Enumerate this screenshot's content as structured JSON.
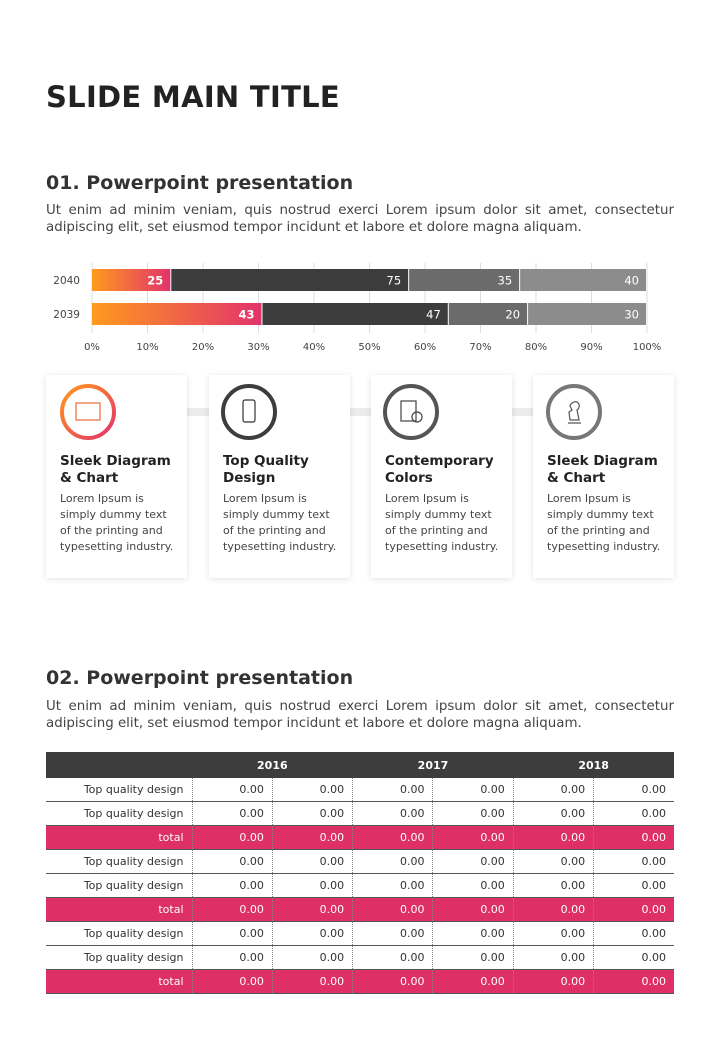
{
  "title": "SLIDE MAIN TITLE",
  "section1": {
    "heading": "01. Powerpoint presentation",
    "text": "Ut enim ad minim veniam, quis nostrud exerci  Lorem ipsum dolor sit amet, consectetur adipiscing elit, set eiusmod tempor incidunt et labore et dolore magna aliquam."
  },
  "chart_data": {
    "type": "stacked-bar-100",
    "categories": [
      "2040",
      "2039"
    ],
    "series": [
      {
        "color": [
          "#ff9a1e",
          "#e2336b"
        ],
        "values": [
          25,
          43
        ]
      },
      {
        "color": "#3d3d3d",
        "values": [
          75,
          47
        ]
      },
      {
        "color": "#6b6b6b",
        "values": [
          35,
          20
        ]
      },
      {
        "color": "#8c8c8c",
        "values": [
          40,
          30
        ]
      }
    ],
    "xlim": [
      0,
      100
    ],
    "xticks": [
      {
        "value": 0,
        "label": "0%"
      },
      {
        "value": 10,
        "label": "10%"
      },
      {
        "value": 20,
        "label": "20%"
      },
      {
        "value": 30,
        "label": "30%"
      },
      {
        "value": 40,
        "label": "40%"
      },
      {
        "value": 50,
        "label": "50%"
      },
      {
        "value": 60,
        "label": "60%"
      },
      {
        "value": 70,
        "label": "70%"
      },
      {
        "value": 80,
        "label": "80%"
      },
      {
        "value": 90,
        "label": "90%"
      },
      {
        "value": 100,
        "label": "100%"
      }
    ],
    "grid": true
  },
  "cards": [
    {
      "title": "Sleek Diagram & Chart",
      "text": "Lorem Ipsum is simply dummy text of the printing and typesetting industry."
    },
    {
      "title": "Top Quality Design",
      "text": "Lorem Ipsum is simply dummy text of the printing and typesetting industry."
    },
    {
      "title": "Contemporary Colors",
      "text": "Lorem Ipsum is simply dummy text of the printing and typesetting industry."
    },
    {
      "title": "Sleek Diagram & Chart",
      "text": "Lorem Ipsum is simply dummy text of the printing and typesetting industry."
    }
  ],
  "section2": {
    "heading": "02. Powerpoint presentation",
    "text": "Ut enim ad minim veniam, quis nostrud exerci  Lorem ipsum dolor sit amet, consectetur adipiscing elit, set eiusmod tempor incidunt et labore et dolore magna aliquam."
  },
  "table": {
    "header": [
      "2016",
      "2017",
      "2018"
    ],
    "rows": [
      [
        "Top quality design",
        "0.00",
        "0.00",
        "0.00",
        "0.00",
        "0.00",
        "0.00"
      ],
      [
        "Top quality design",
        "0.00",
        "0.00",
        "0.00",
        "0.00",
        "0.00",
        "0.00"
      ],
      [
        "total",
        "0.00",
        "0.00",
        "0.00",
        "0.00",
        "0.00",
        "0.00"
      ],
      [
        "Top quality design",
        "0.00",
        "0.00",
        "0.00",
        "0.00",
        "0.00",
        "0.00"
      ],
      [
        "Top quality design",
        "0.00",
        "0.00",
        "0.00",
        "0.00",
        "0.00",
        "0.00"
      ],
      [
        "total",
        "0.00",
        "0.00",
        "0.00",
        "0.00",
        "0.00",
        "0.00"
      ],
      [
        "Top quality design",
        "0.00",
        "0.00",
        "0.00",
        "0.00",
        "0.00",
        "0.00"
      ],
      [
        "Top quality design",
        "0.00",
        "0.00",
        "0.00",
        "0.00",
        "0.00",
        "0.00"
      ],
      [
        "total",
        "0.00",
        "0.00",
        "0.00",
        "0.00",
        "0.00",
        "0.00"
      ]
    ]
  }
}
